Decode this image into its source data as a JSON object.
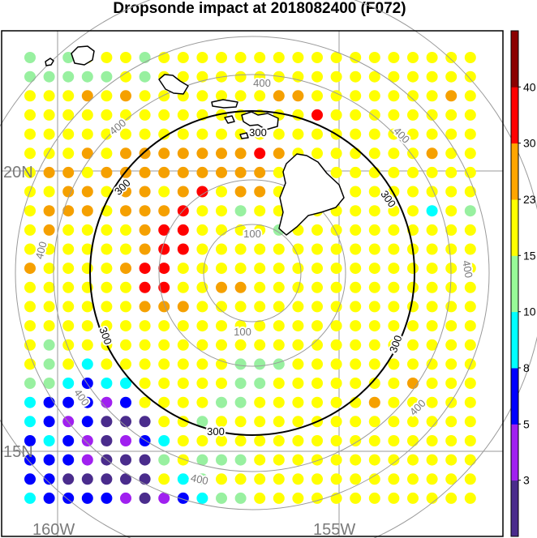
{
  "title": "Dropsonde impact at 2018082400 (F072)",
  "axes": {
    "lat_labels": [
      "20N",
      "15N"
    ],
    "lon_labels": [
      "160W",
      "155W"
    ]
  },
  "range_rings": {
    "gray_labels": [
      "100",
      "400"
    ],
    "black_label": "300"
  },
  "colorbar": {
    "levels": [
      "3",
      "5",
      "8",
      "10",
      "15",
      "23",
      "30",
      "40"
    ],
    "colors": [
      "#4a2c8c",
      "#a020f0",
      "#0000ff",
      "#00ffff",
      "#98fb98",
      "#ffff00",
      "#ffa500",
      "#ff0000",
      "#8b0000"
    ]
  },
  "grid": {
    "category_colors": {
      "Y": "#ffff00",
      "O": "#f5a000",
      "R": "#ff0000",
      "G": "#98f0a0",
      "C": "#00ffff",
      "B": "#0000ff",
      "P": "#a020f0",
      "D": "#4a2c8c",
      "S": "#f07000"
    },
    "rows": [
      "G.GYYYGYYYYYYYYYYYYYYYYY",
      "GGGGGYGYYYYYYYYYYYYYYYYY",
      "YYYOYOYYYYYYYOOYYYYYYYOY",
      "YYYYYYYYYYYYYYYRYYYYYYYY",
      "YYYYYYYYYYYYYYYYYYYYYYYY",
      "YYYOYOOOOOOOROYYYYYYYOYY",
      "YOOYOOOOOOOOOYOYYYYYYYYY",
      "YYOOYOOYORYOOYYYYYYYYYYY",
      "YOOOYOOORYYGYYYYYYYYYCYG",
      "YOYYYYORRYYYYGYYYYYYYYYY",
      "YYYYYYORRYYYYYYYYYYYYYYY",
      "OYYYYORRYYYYYYYYYYYYYYYY",
      "YYYYYYRRYYOOYYYYYYYYYYYY",
      "YYYYYYOOOYYYYYYYYYYYYYYY",
      "YYYYYYYYYYYYYYYYYYYYYYYY",
      "YGYYYYYYYYYYYYYYYYYYYYYY",
      "YGYCYYYYYYYGGGYYYYYYYYYY",
      "GGCBCCYYYYYGGYYYYYYYOYYY",
      "CBBBPBYYYYGGYYYYYYOYYYYY",
      "CBPBDDDYYGYYYYYYYYYYYYYY",
      "BCBPDPBCYYYYYYYYYYYYYYYY",
      "BBBPDDDGYGGGYYYYYYYYYYYY",
      "BBDDDDDYCGYYYYYYYYYYYYYY",
      "CBBBBPDPBCGGYYYYYYYYYYYY"
    ]
  }
}
